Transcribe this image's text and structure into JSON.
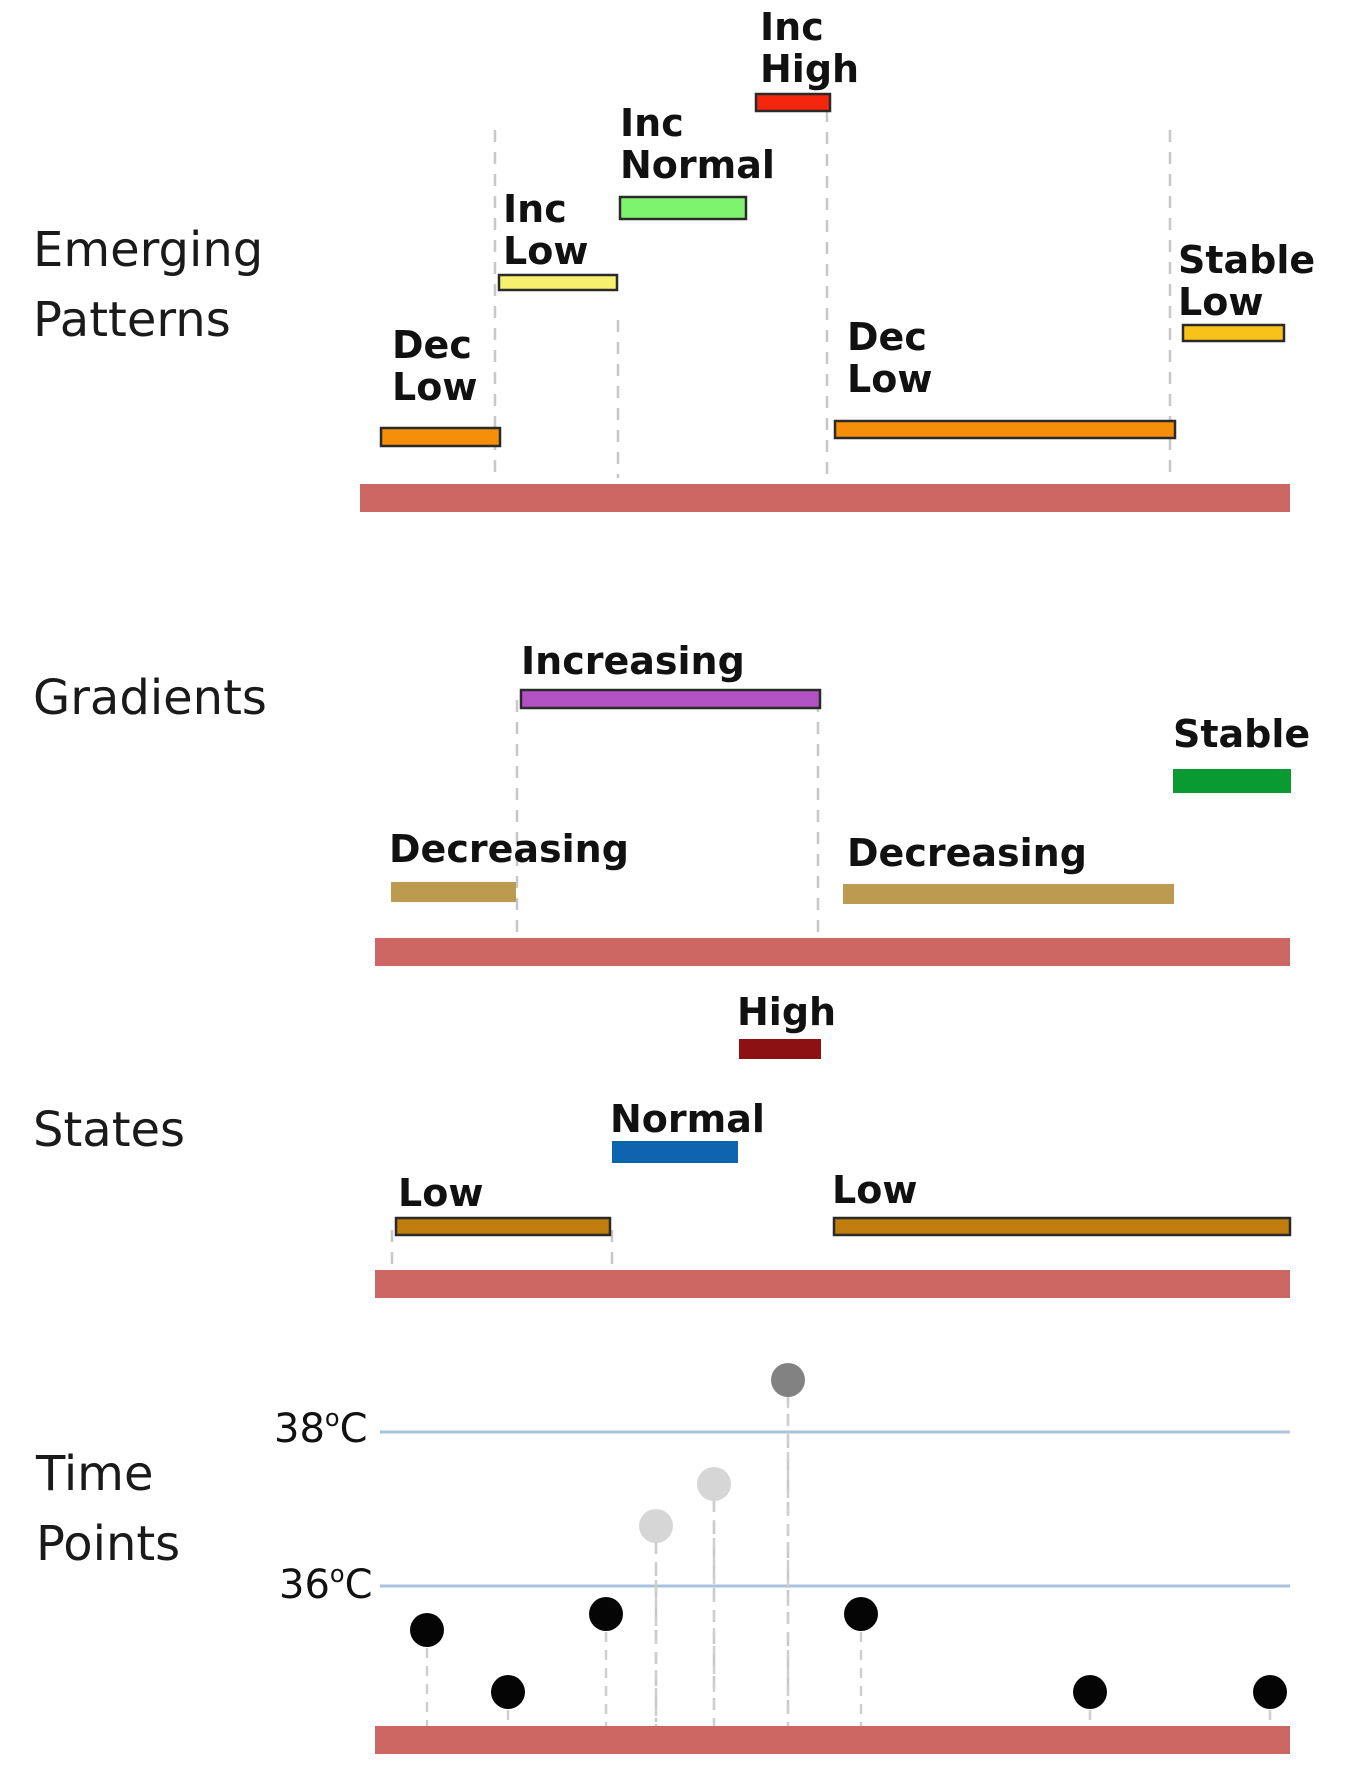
{
  "rows": {
    "emerging_patterns": {
      "label_lines": [
        "Emerging",
        "Patterns"
      ]
    },
    "gradients": {
      "label": "Gradients"
    },
    "states": {
      "label": "States"
    },
    "time_points": {
      "label_lines": [
        "Time",
        "Points"
      ]
    }
  },
  "emerging_patterns": [
    {
      "label_lines": [
        "Dec",
        "Low"
      ],
      "color": "#F58F0A"
    },
    {
      "label_lines": [
        "Inc",
        "Low"
      ],
      "color": "#F7F06E"
    },
    {
      "label_lines": [
        "Inc",
        "Normal"
      ],
      "color": "#7EF36E"
    },
    {
      "label_lines": [
        "Inc",
        "High"
      ],
      "color": "#F3250C"
    },
    {
      "label_lines": [
        "Dec",
        "Low"
      ],
      "color": "#F58F0A"
    },
    {
      "label_lines": [
        "Stable",
        "Low"
      ],
      "color": "#F9C21A"
    }
  ],
  "gradients": [
    {
      "label": "Decreasing",
      "color": "#BC9B50"
    },
    {
      "label": "Increasing",
      "color": "#B252C2"
    },
    {
      "label": "Decreasing",
      "color": "#BC9B50"
    },
    {
      "label": "Stable",
      "color": "#0A9A32"
    }
  ],
  "states": [
    {
      "label": "Low",
      "color": "#C07C0C"
    },
    {
      "label": "Normal",
      "color": "#0E64AE"
    },
    {
      "label": "High",
      "color": "#8C1112"
    },
    {
      "label": "Low",
      "color": "#C07C0C"
    }
  ],
  "temperature_axis": {
    "upper": {
      "value": "38",
      "superscript": "o",
      "unit": "C"
    },
    "lower": {
      "value": "36",
      "superscript": "o",
      "unit": "C"
    }
  },
  "colors": {
    "timeline": "#CC6663",
    "reference_line": "#A9C2DD",
    "point_dark": "#050505",
    "point_light": "#D6D6D6",
    "point_mid": "#828282"
  }
}
